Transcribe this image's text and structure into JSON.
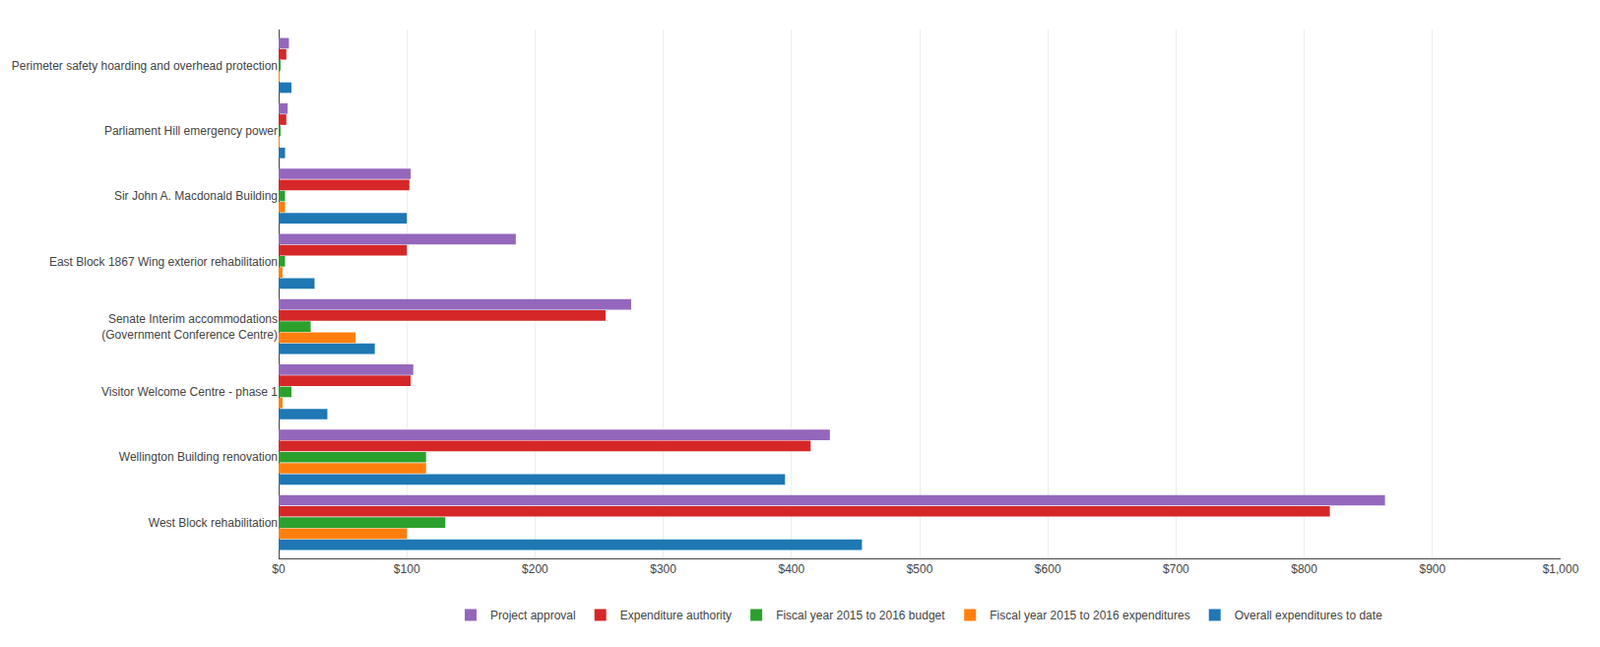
{
  "chart_data": {
    "type": "bar",
    "orientation": "horizontal",
    "categories": [
      "West Block rehabilitation",
      "Wellington Building renovation",
      "Visitor Welcome Centre - phase 1",
      "Senate Interim accommodations\n(Government Conference Centre)",
      "East Block 1867 Wing exterior rehabilitation",
      "Sir John A. Macdonald Building",
      "Parliament Hill emergency power",
      "Perimeter safety hoarding and overhead protection"
    ],
    "series": [
      {
        "name": "Project approval",
        "values": [
          863,
          430,
          105,
          275,
          185,
          103,
          7,
          8
        ]
      },
      {
        "name": "Expenditure authority",
        "values": [
          820,
          415,
          103,
          255,
          100,
          102,
          6,
          6
        ]
      },
      {
        "name": "Fiscal year 2015 to 2016 budget",
        "values": [
          130,
          115,
          10,
          25,
          5,
          5,
          1,
          1
        ]
      },
      {
        "name": "Fiscal year 2015 to 2016 expenditures",
        "values": [
          100,
          115,
          3,
          60,
          3,
          5,
          0.5,
          0.5
        ]
      },
      {
        "name": "Overall expenditures to date",
        "values": [
          455,
          395,
          38,
          75,
          28,
          100,
          5,
          10
        ]
      }
    ],
    "xlim": [
      0,
      1000
    ],
    "xticks": [
      {
        "value": 0,
        "label": "$0"
      },
      {
        "value": 100,
        "label": "$100"
      },
      {
        "value": 200,
        "label": "$200"
      },
      {
        "value": 300,
        "label": "$300"
      },
      {
        "value": 400,
        "label": "$400"
      },
      {
        "value": 500,
        "label": "$500"
      },
      {
        "value": 600,
        "label": "$600"
      },
      {
        "value": 700,
        "label": "$700"
      },
      {
        "value": 800,
        "label": "$800"
      },
      {
        "value": 900,
        "label": "$900"
      },
      {
        "value": 1000,
        "label": "$1,000"
      }
    ],
    "grid": true,
    "legend": "bottom"
  }
}
